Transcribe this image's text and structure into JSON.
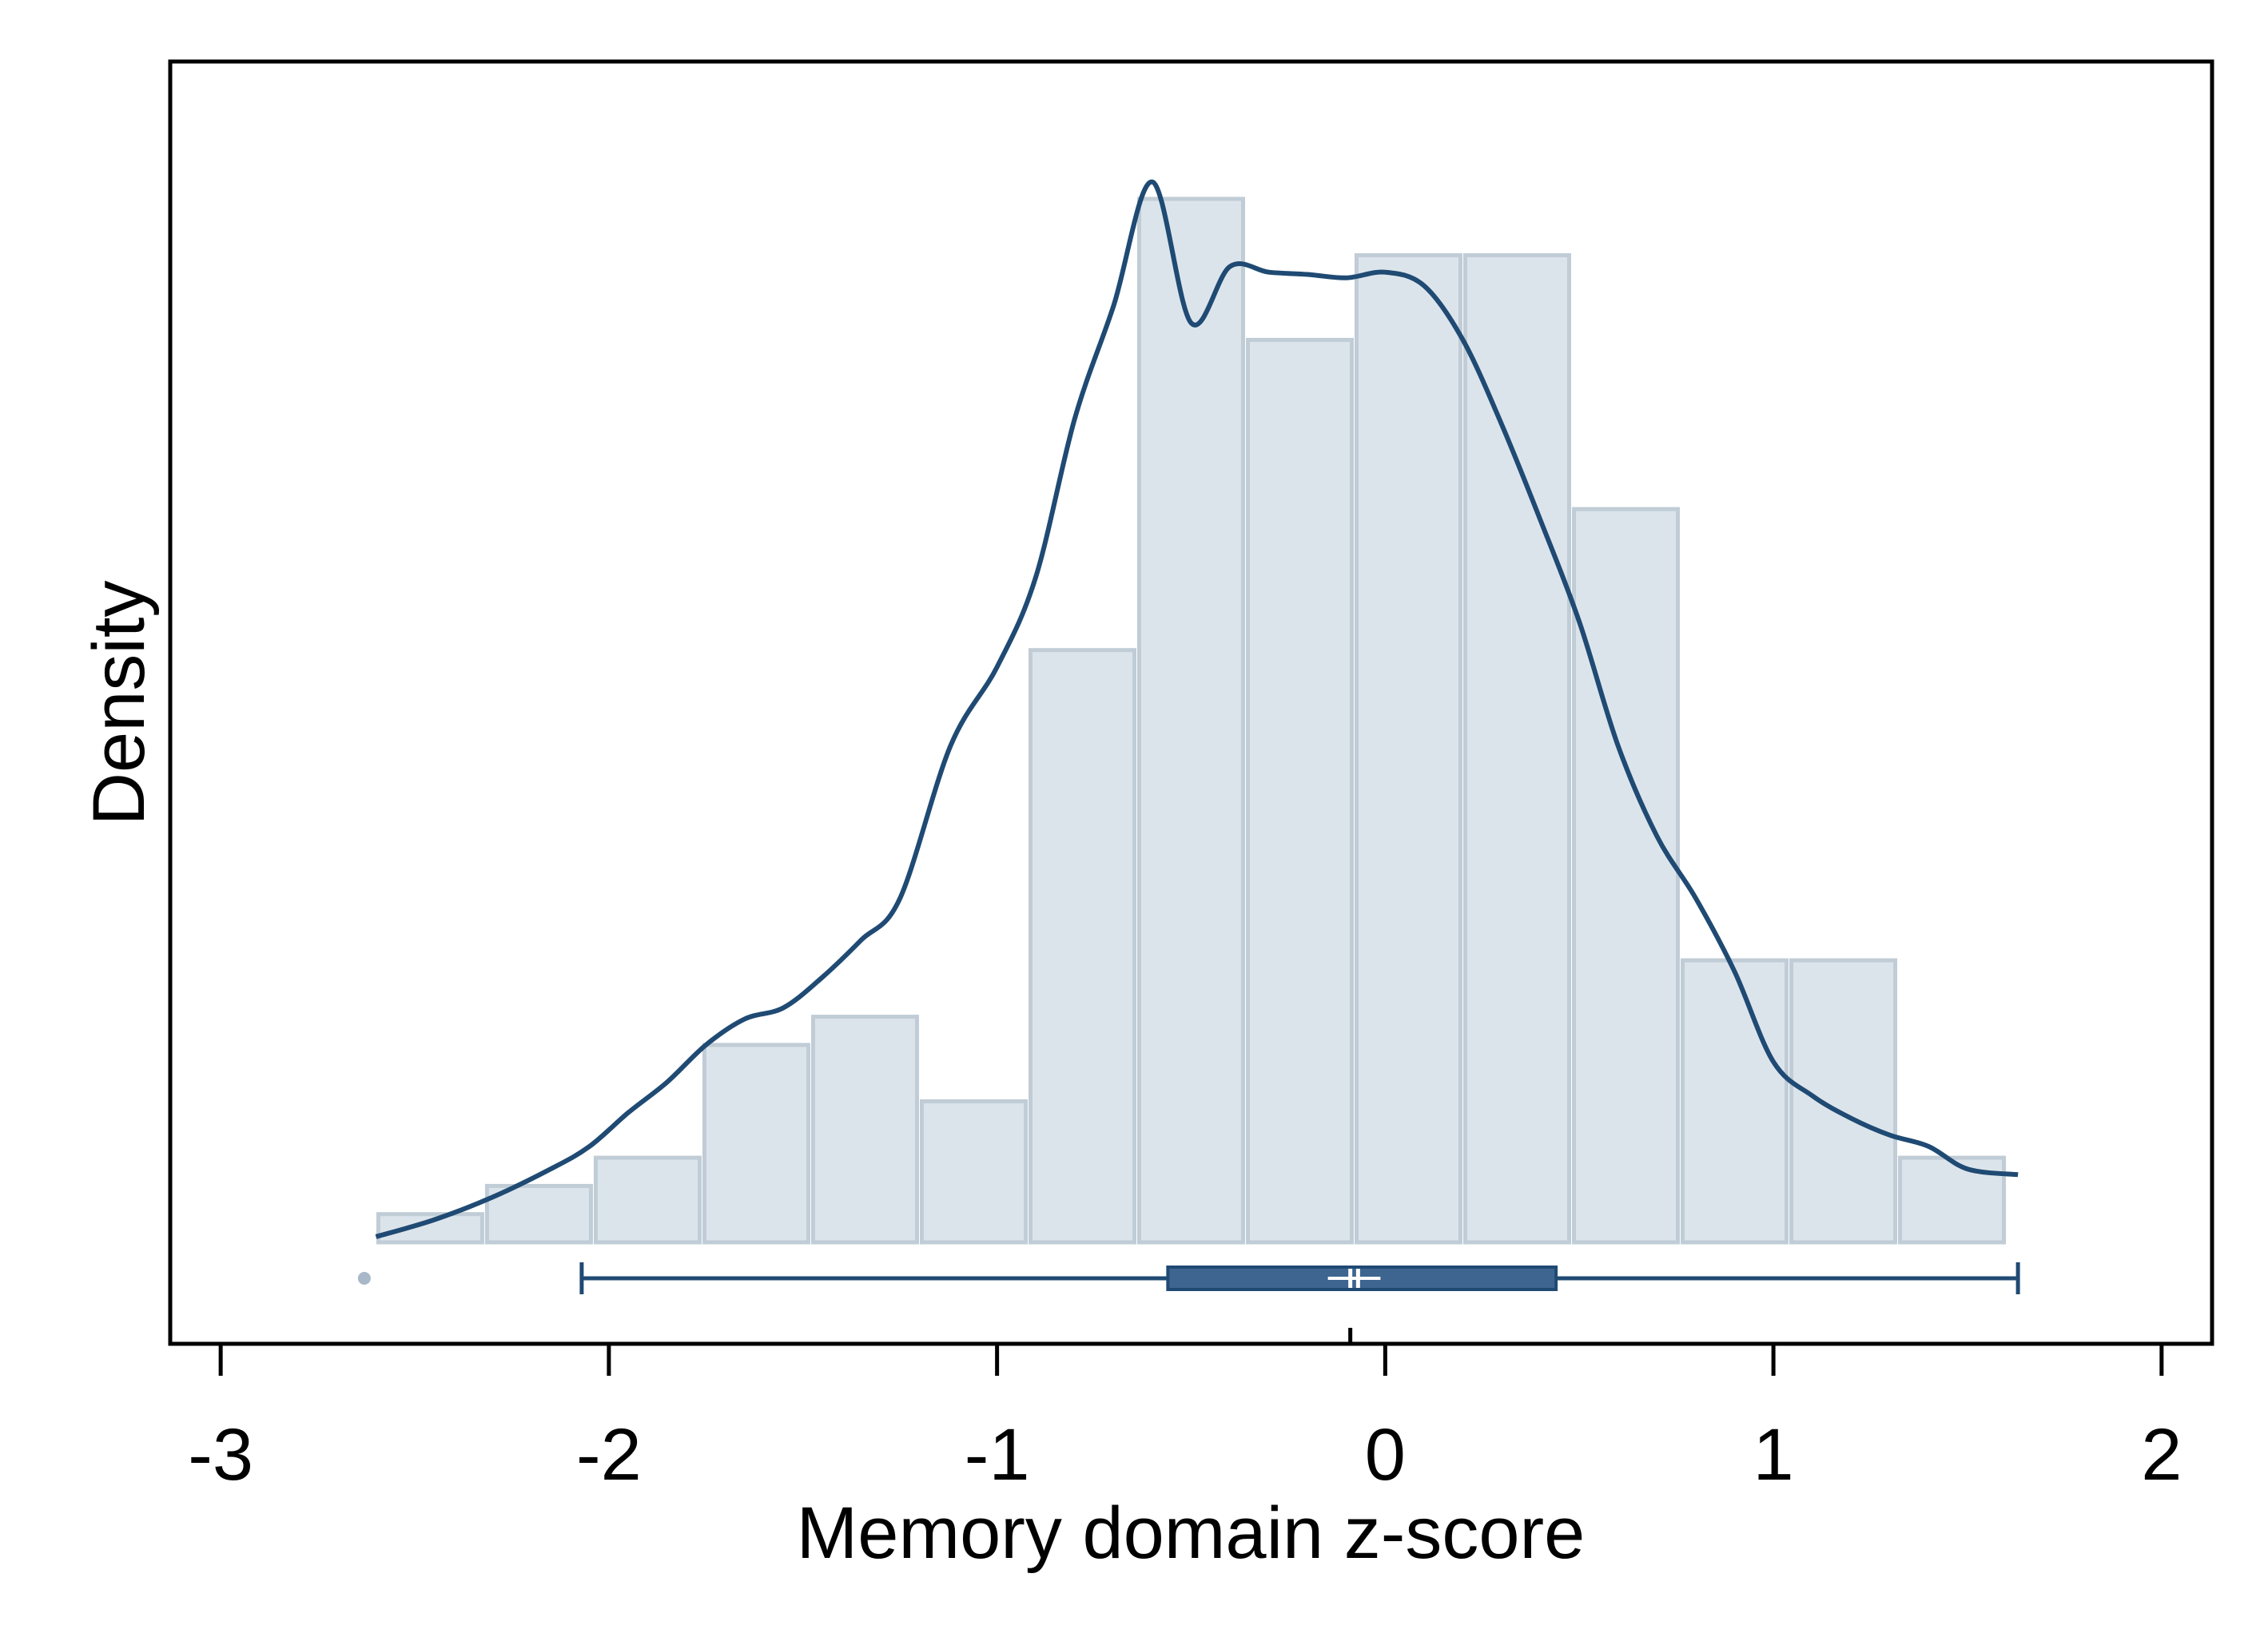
{
  "chart_data": {
    "type": "histogram",
    "xlabel": "Memory domain z-score",
    "ylabel": "Density",
    "xlim": [
      -3.13,
      2.13
    ],
    "ylim": [
      0,
      1.0
    ],
    "x_ticks": [
      "-3",
      "-2",
      "-1",
      "0",
      "1",
      "2"
    ],
    "x_tick_values": [
      -3,
      -2,
      -1,
      0,
      1,
      2
    ],
    "grid": false,
    "legend": "none",
    "histogram": {
      "bin_edges": [
        -2.6,
        -2.32,
        -2.04,
        -1.76,
        -1.48,
        -1.2,
        -0.92,
        -0.64,
        -0.36,
        -0.08,
        0.2,
        0.48,
        0.76,
        1.04,
        1.32,
        1.6
      ],
      "heights": [
        0.025,
        0.05,
        0.075,
        0.175,
        0.2,
        0.125,
        0.525,
        0.925,
        0.8,
        0.875,
        0.875,
        0.65,
        0.25,
        0.25,
        0.075
      ]
    },
    "kde": {
      "x": [
        -2.6,
        -2.45,
        -2.3,
        -2.15,
        -2.05,
        -1.95,
        -1.85,
        -1.75,
        -1.65,
        -1.55,
        -1.45,
        -1.35,
        -1.25,
        -1.12,
        -1.0,
        -0.9,
        -0.8,
        -0.7,
        -0.6,
        -0.5,
        -0.4,
        -0.3,
        -0.2,
        -0.1,
        0.0,
        0.1,
        0.2,
        0.3,
        0.4,
        0.5,
        0.6,
        0.7,
        0.8,
        0.9,
        1.0,
        1.1,
        1.2,
        1.3,
        1.4,
        1.5,
        1.63
      ],
      "y": [
        0.005,
        0.02,
        0.04,
        0.065,
        0.085,
        0.115,
        0.142,
        0.175,
        0.198,
        0.208,
        0.235,
        0.268,
        0.305,
        0.44,
        0.51,
        0.59,
        0.73,
        0.83,
        0.94,
        0.815,
        0.865,
        0.86,
        0.858,
        0.855,
        0.86,
        0.848,
        0.8,
        0.725,
        0.64,
        0.55,
        0.44,
        0.36,
        0.305,
        0.24,
        0.16,
        0.13,
        0.11,
        0.095,
        0.085,
        0.065,
        0.06
      ]
    },
    "boxplot": {
      "median": -0.07,
      "mean": -0.09,
      "q1": -0.56,
      "q3": 0.44,
      "whisker_low": -2.07,
      "whisker_high": 1.63,
      "outliers": [
        -2.63
      ]
    },
    "colors": {
      "bar_fill": "#dce4eb",
      "bar_edge": "#c0ccd6",
      "line": "#1f4a73",
      "box_fill": "#3e6590",
      "outlier": "#a8b8c8",
      "frame": "#000000"
    }
  }
}
